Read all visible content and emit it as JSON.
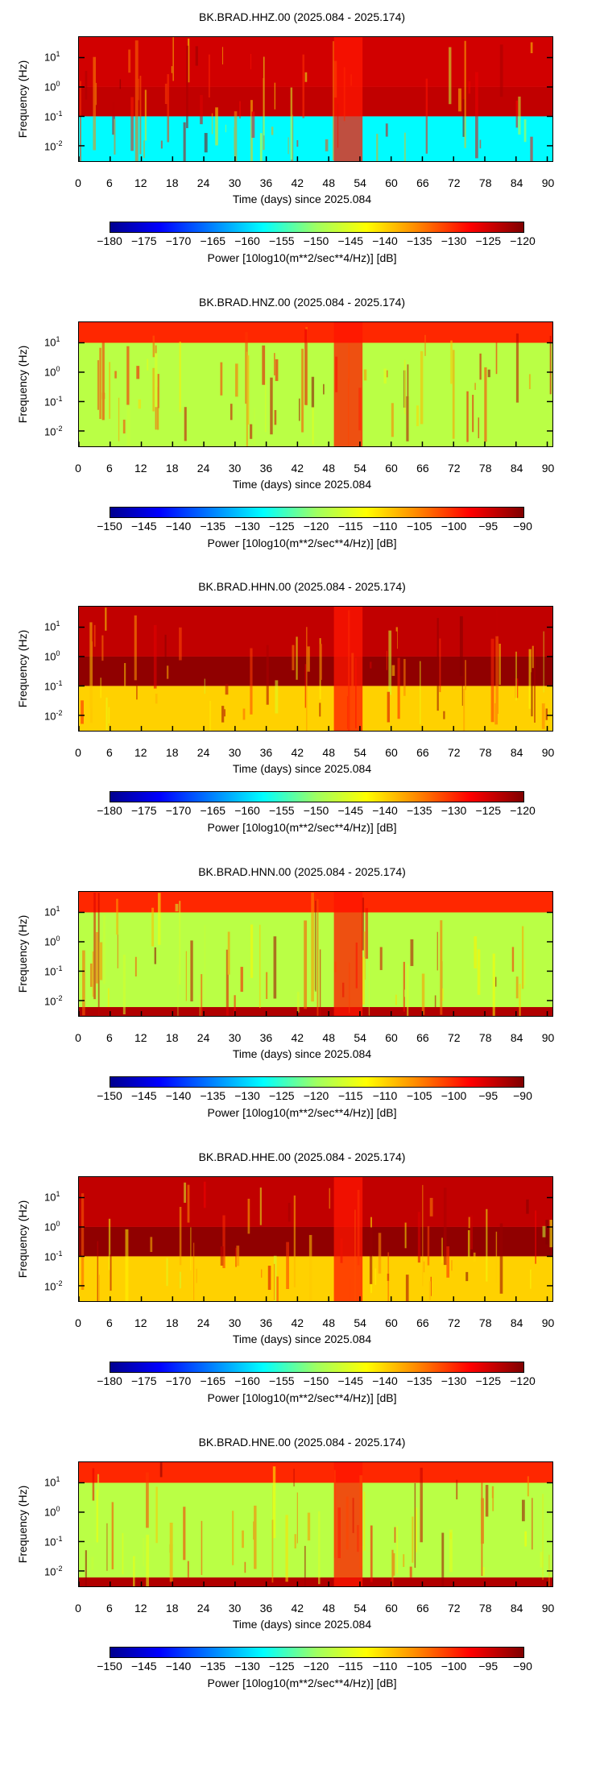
{
  "chart_data": [
    {
      "type": "heatmap",
      "title": "BK.BRAD.HHZ.00 (2025.084 - 2025.174)",
      "xlabel": "Time (days) since 2025.084",
      "ylabel": "Frequency (Hz)",
      "xlim": [
        0,
        91
      ],
      "ylim": [
        0.003,
        50
      ],
      "yscale": "log",
      "xticks": [
        "0",
        "6",
        "12",
        "18",
        "24",
        "30",
        "36",
        "42",
        "48",
        "54",
        "60",
        "66",
        "72",
        "78",
        "84",
        "90"
      ],
      "yticks": [
        "10^1",
        "10^0",
        "10^-1",
        "10^-2"
      ],
      "colorbar_label": "Power [10log10(m**2/sec**4/Hz)] [dB]",
      "colorbar_range": [
        -180,
        -120
      ],
      "colorbar_ticks": [
        "−180",
        "−175",
        "−170",
        "−165",
        "−160",
        "−155",
        "−150",
        "−145",
        "−140",
        "−135",
        "−130",
        "−125",
        "−120"
      ],
      "colormap": "jet",
      "bands": [
        {
          "fmin": 1,
          "fmax": 50,
          "power_db": -125
        },
        {
          "fmin": 0.1,
          "fmax": 1,
          "power_db": -124
        },
        {
          "fmin": 0.003,
          "fmax": 0.1,
          "power_db": -158
        }
      ]
    },
    {
      "type": "heatmap",
      "title": "BK.BRAD.HNZ.00 (2025.084 - 2025.174)",
      "xlabel": "Time (days) since 2025.084",
      "ylabel": "Frequency (Hz)",
      "xlim": [
        0,
        91
      ],
      "ylim": [
        0.003,
        50
      ],
      "yscale": "log",
      "xticks": [
        "0",
        "6",
        "12",
        "18",
        "24",
        "30",
        "36",
        "42",
        "48",
        "54",
        "60",
        "66",
        "72",
        "78",
        "84",
        "90"
      ],
      "yticks": [
        "10^1",
        "10^0",
        "10^-1",
        "10^-2"
      ],
      "colorbar_label": "Power [10log10(m**2/sec**4/Hz)] [dB]",
      "colorbar_range": [
        -150,
        -90
      ],
      "colorbar_ticks": [
        "−150",
        "−145",
        "−140",
        "−135",
        "−130",
        "−125",
        "−120",
        "−115",
        "−110",
        "−105",
        "−100",
        "−95",
        "−90"
      ],
      "colormap": "jet",
      "bands": [
        {
          "fmin": 10,
          "fmax": 50,
          "power_db": -100
        },
        {
          "fmin": 0.003,
          "fmax": 10,
          "power_db": -118
        }
      ]
    },
    {
      "type": "heatmap",
      "title": "BK.BRAD.HHN.00 (2025.084 - 2025.174)",
      "xlabel": "Time (days) since 2025.084",
      "ylabel": "Frequency (Hz)",
      "xlim": [
        0,
        91
      ],
      "ylim": [
        0.003,
        50
      ],
      "yscale": "log",
      "xticks": [
        "0",
        "6",
        "12",
        "18",
        "24",
        "30",
        "36",
        "42",
        "48",
        "54",
        "60",
        "66",
        "72",
        "78",
        "84",
        "90"
      ],
      "yticks": [
        "10^1",
        "10^0",
        "10^-1",
        "10^-2"
      ],
      "colorbar_label": "Power [10log10(m**2/sec**4/Hz)] [dB]",
      "colorbar_range": [
        -180,
        -120
      ],
      "colorbar_ticks": [
        "−180",
        "−175",
        "−170",
        "−165",
        "−160",
        "−155",
        "−150",
        "−145",
        "−140",
        "−135",
        "−130",
        "−125",
        "−120"
      ],
      "colormap": "jet",
      "bands": [
        {
          "fmin": 1,
          "fmax": 50,
          "power_db": -124
        },
        {
          "fmin": 0.1,
          "fmax": 1,
          "power_db": -121
        },
        {
          "fmin": 0.003,
          "fmax": 0.1,
          "power_db": -140
        }
      ]
    },
    {
      "type": "heatmap",
      "title": "BK.BRAD.HNN.00 (2025.084 - 2025.174)",
      "xlabel": "Time (days) since 2025.084",
      "ylabel": "Frequency (Hz)",
      "xlim": [
        0,
        91
      ],
      "ylim": [
        0.003,
        50
      ],
      "yscale": "log",
      "xticks": [
        "0",
        "6",
        "12",
        "18",
        "24",
        "30",
        "36",
        "42",
        "48",
        "54",
        "60",
        "66",
        "72",
        "78",
        "84",
        "90"
      ],
      "yticks": [
        "10^1",
        "10^0",
        "10^-1",
        "10^-2"
      ],
      "colorbar_label": "Power [10log10(m**2/sec**4/Hz)] [dB]",
      "colorbar_range": [
        -150,
        -90
      ],
      "colorbar_ticks": [
        "−150",
        "−145",
        "−140",
        "−135",
        "−130",
        "−125",
        "−120",
        "−115",
        "−110",
        "−105",
        "−100",
        "−95",
        "−90"
      ],
      "colormap": "jet",
      "bands": [
        {
          "fmin": 10,
          "fmax": 50,
          "power_db": -100
        },
        {
          "fmin": 0.006,
          "fmax": 10,
          "power_db": -118
        },
        {
          "fmin": 0.003,
          "fmax": 0.006,
          "power_db": -93
        }
      ]
    },
    {
      "type": "heatmap",
      "title": "BK.BRAD.HHE.00 (2025.084 - 2025.174)",
      "xlabel": "Time (days) since 2025.084",
      "ylabel": "Frequency (Hz)",
      "xlim": [
        0,
        91
      ],
      "ylim": [
        0.003,
        50
      ],
      "yscale": "log",
      "xticks": [
        "0",
        "6",
        "12",
        "18",
        "24",
        "30",
        "36",
        "42",
        "48",
        "54",
        "60",
        "66",
        "72",
        "78",
        "84",
        "90"
      ],
      "yticks": [
        "10^1",
        "10^0",
        "10^-1",
        "10^-2"
      ],
      "colorbar_label": "Power [10log10(m**2/sec**4/Hz)] [dB]",
      "colorbar_range": [
        -180,
        -120
      ],
      "colorbar_ticks": [
        "−180",
        "−175",
        "−170",
        "−165",
        "−160",
        "−155",
        "−150",
        "−145",
        "−140",
        "−135",
        "−130",
        "−125",
        "−120"
      ],
      "colormap": "jet",
      "bands": [
        {
          "fmin": 1,
          "fmax": 50,
          "power_db": -124
        },
        {
          "fmin": 0.1,
          "fmax": 1,
          "power_db": -121
        },
        {
          "fmin": 0.003,
          "fmax": 0.1,
          "power_db": -140
        }
      ]
    },
    {
      "type": "heatmap",
      "title": "BK.BRAD.HNE.00 (2025.084 - 2025.174)",
      "xlabel": "Time (days) since 2025.084",
      "ylabel": "Frequency (Hz)",
      "xlim": [
        0,
        91
      ],
      "ylim": [
        0.003,
        50
      ],
      "yscale": "log",
      "xticks": [
        "0",
        "6",
        "12",
        "18",
        "24",
        "30",
        "36",
        "42",
        "48",
        "54",
        "60",
        "66",
        "72",
        "78",
        "84",
        "90"
      ],
      "yticks": [
        "10^1",
        "10^0",
        "10^-1",
        "10^-2"
      ],
      "colorbar_label": "Power [10log10(m**2/sec**4/Hz)] [dB]",
      "colorbar_range": [
        -150,
        -90
      ],
      "colorbar_ticks": [
        "−150",
        "−145",
        "−140",
        "−135",
        "−130",
        "−125",
        "−120",
        "−115",
        "−110",
        "−105",
        "−100",
        "−95",
        "−90"
      ],
      "colormap": "jet",
      "bands": [
        {
          "fmin": 10,
          "fmax": 50,
          "power_db": -100
        },
        {
          "fmin": 0.006,
          "fmax": 10,
          "power_db": -118
        },
        {
          "fmin": 0.003,
          "fmax": 0.006,
          "power_db": -93
        }
      ]
    }
  ]
}
